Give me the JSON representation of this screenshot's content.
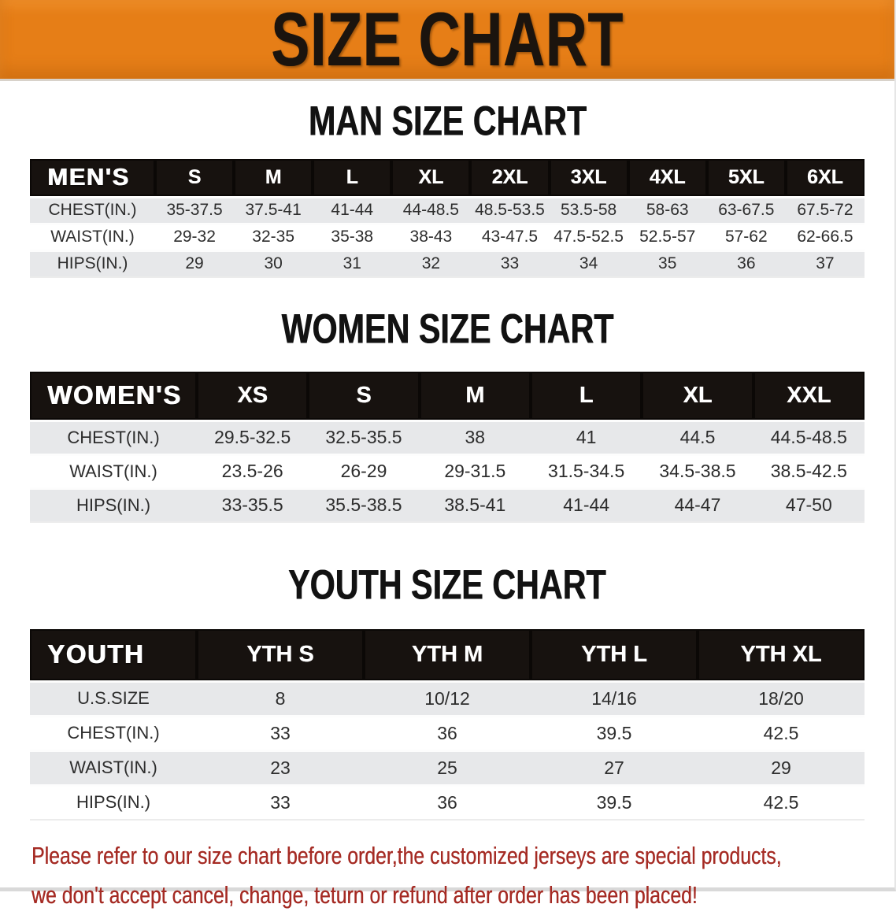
{
  "banner": {
    "title": "SIZE CHART",
    "bg_color": "#e67e17",
    "text_color": "#1b140e"
  },
  "colors": {
    "header_band": "#17120f",
    "row_stripe": "#e7e8ea",
    "disclaimer_red": "#a52b24"
  },
  "sections": [
    {
      "heading": "MAN SIZE CHART",
      "table": {
        "header_label": "MEN'S",
        "columns": [
          "S",
          "M",
          "L",
          "XL",
          "2XL",
          "3XL",
          "4XL",
          "5XL",
          "6XL"
        ],
        "rows": [
          {
            "label": "CHEST(IN.)",
            "values": [
              "35-37.5",
              "37.5-41",
              "41-44",
              "44-48.5",
              "48.5-53.5",
              "53.5-58",
              "58-63",
              "63-67.5",
              "67.5-72"
            ]
          },
          {
            "label": "WAIST(IN.)",
            "values": [
              "29-32",
              "32-35",
              "35-38",
              "38-43",
              "43-47.5",
              "47.5-52.5",
              "52.5-57",
              "57-62",
              "62-66.5"
            ]
          },
          {
            "label": "HIPS(IN.)",
            "values": [
              "29",
              "30",
              "31",
              "32",
              "33",
              "34",
              "35",
              "36",
              "37"
            ]
          }
        ]
      }
    },
    {
      "heading": "WOMEN SIZE CHART",
      "table": {
        "header_label": "WOMEN'S",
        "columns": [
          "XS",
          "S",
          "M",
          "L",
          "XL",
          "XXL"
        ],
        "rows": [
          {
            "label": "CHEST(IN.)",
            "values": [
              "29.5-32.5",
              "32.5-35.5",
              "38",
              "41",
              "44.5",
              "44.5-48.5"
            ]
          },
          {
            "label": "WAIST(IN.)",
            "values": [
              "23.5-26",
              "26-29",
              "29-31.5",
              "31.5-34.5",
              "34.5-38.5",
              "38.5-42.5"
            ]
          },
          {
            "label": "HIPS(IN.)",
            "values": [
              "33-35.5",
              "35.5-38.5",
              "38.5-41",
              "41-44",
              "44-47",
              "47-50"
            ]
          }
        ]
      }
    },
    {
      "heading": "YOUTH SIZE CHART",
      "table": {
        "header_label": "YOUTH",
        "columns": [
          "YTH S",
          "YTH M",
          "YTH L",
          "YTH XL"
        ],
        "rows": [
          {
            "label": "U.S.SIZE",
            "values": [
              "8",
              "10/12",
              "14/16",
              "18/20"
            ]
          },
          {
            "label": "CHEST(IN.)",
            "values": [
              "33",
              "36",
              "39.5",
              "42.5"
            ]
          },
          {
            "label": "WAIST(IN.)",
            "values": [
              "23",
              "25",
              "27",
              "29"
            ]
          },
          {
            "label": "HIPS(IN.)",
            "values": [
              "33",
              "36",
              "39.5",
              "42.5"
            ]
          }
        ]
      }
    }
  ],
  "disclaimer": {
    "line1": "Please refer to our size chart before order,the customized jerseys are special products,",
    "line2": "we don't accept cancel, change, teturn or refund after order has been placed!"
  }
}
